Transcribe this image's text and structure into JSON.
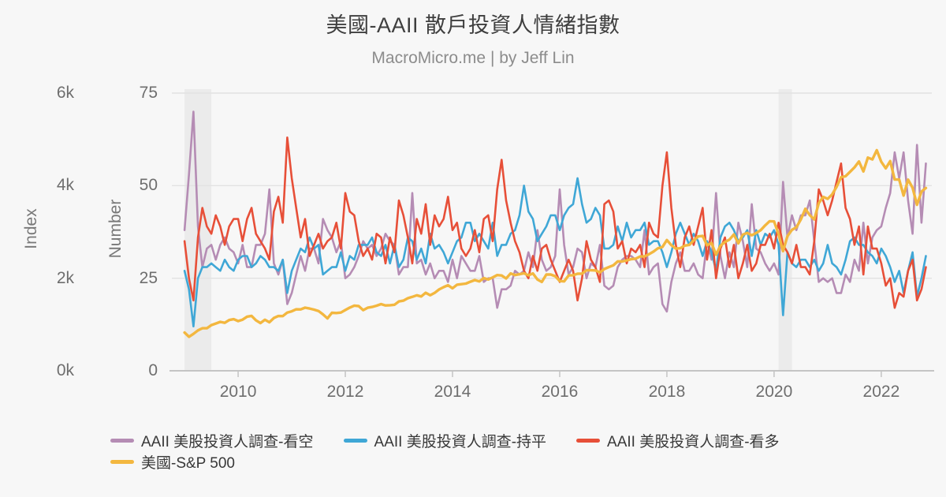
{
  "header": {
    "title": "美國-AAII 散戶投資人情緒指數",
    "subtitle": "MacroMicro.me | by Jeff Lin"
  },
  "colors": {
    "background": "#f7f7f7",
    "recession_band": "#ebebeb",
    "gridline": "#e2e2e2",
    "axis_line": "#c4c4c4",
    "title_text": "#3f3f3f",
    "subtitle_text": "#8c8c8c",
    "tick_text": "#6e6e6e",
    "axis_title_text": "#787878",
    "legend_text": "#383838"
  },
  "chart_data": {
    "type": "line",
    "title": "美國-AAII 散戶投資人情緒指數",
    "subtitle": "MacroMicro.me | by Jeff Lin",
    "legend_position": "bottom",
    "grid": "horizontal",
    "x_axis": {
      "start_month": "2009-01",
      "end_month": "2022-11",
      "step": "monthly",
      "points_per_series": 167,
      "tick_labels": [
        "2010",
        "2012",
        "2014",
        "2016",
        "2018",
        "2020",
        "2022"
      ]
    },
    "axes": {
      "index": {
        "label": "Index",
        "range": [
          0,
          6000
        ],
        "tick_values": [
          0,
          2000,
          4000,
          6000
        ],
        "tick_labels": [
          "0k",
          "2k",
          "4k",
          "6k"
        ]
      },
      "number": {
        "label": "Number",
        "range": [
          0,
          75
        ],
        "tick_values": [
          0,
          25,
          50,
          75
        ],
        "tick_labels": [
          "0",
          "25",
          "50",
          "75"
        ]
      }
    },
    "recession_bands": [
      {
        "start": "2009-01",
        "end": "2009-06"
      },
      {
        "start": "2020-02",
        "end": "2020-04"
      }
    ],
    "series": [
      {
        "id": "bear",
        "name": "AAII 美股投資人調查-看空",
        "axis": "number",
        "color": "#b58cb4",
        "line_width": 2.6,
        "values": [
          38,
          53,
          70,
          39,
          28,
          33,
          34,
          30,
          34,
          36,
          33,
          32,
          29,
          34,
          28,
          28,
          34,
          34,
          37,
          49,
          29,
          26,
          30,
          18,
          21,
          26,
          31,
          27,
          33,
          33,
          29,
          41,
          38,
          36,
          32,
          35,
          25,
          26,
          28,
          31,
          35,
          33,
          34,
          31,
          33,
          37,
          35,
          34,
          26,
          28,
          28,
          48,
          29,
          30,
          26,
          29,
          25,
          27,
          27,
          24,
          30,
          25,
          31,
          29,
          27,
          27,
          31,
          24,
          25,
          25,
          17,
          22,
          22,
          23,
          27,
          26,
          27,
          32,
          28,
          38,
          30,
          27,
          28,
          31,
          49,
          34,
          26,
          28,
          33,
          32,
          25,
          29,
          28,
          34,
          23,
          22,
          23,
          28,
          30,
          31,
          31,
          30,
          28,
          38,
          26,
          28,
          29,
          18,
          16,
          24,
          29,
          32,
          27,
          27,
          29,
          26,
          25,
          35,
          30,
          48,
          31,
          25,
          32,
          28,
          40,
          35,
          28,
          45,
          33,
          32,
          29,
          27,
          29,
          26,
          51,
          36,
          42,
          38,
          42,
          42,
          46,
          35,
          24,
          25,
          24,
          25,
          21,
          21,
          26,
          24,
          30,
          27,
          40,
          29,
          36,
          38,
          39,
          44,
          48,
          59,
          52,
          59,
          46,
          37,
          61,
          40,
          56
        ]
      },
      {
        "id": "neutral",
        "name": "AAII 美股投資人調查-持平",
        "axis": "number",
        "color": "#3fa7d6",
        "line_width": 2.6,
        "values": [
          27,
          22,
          12,
          25,
          28,
          28,
          29,
          28,
          27,
          30,
          28,
          27,
          30,
          31,
          31,
          28,
          29,
          31,
          30,
          28,
          28,
          27,
          30,
          21,
          27,
          30,
          33,
          32,
          36,
          33,
          34,
          26,
          27,
          28,
          28,
          32,
          27,
          31,
          30,
          34,
          34,
          34,
          36,
          32,
          31,
          34,
          29,
          34,
          28,
          30,
          36,
          35,
          30,
          33,
          29,
          37,
          33,
          34,
          32,
          29,
          32,
          35,
          36,
          40,
          40,
          35,
          37,
          35,
          33,
          40,
          31,
          34,
          34,
          37,
          38,
          42,
          50,
          43,
          41,
          35,
          37,
          39,
          42,
          42,
          38,
          42,
          44,
          45,
          52,
          45,
          40,
          41,
          44,
          42,
          33,
          33,
          34,
          39,
          35,
          40,
          36,
          38,
          38,
          40,
          34,
          35,
          35,
          32,
          28,
          32,
          37,
          40,
          37,
          34,
          37,
          35,
          31,
          35,
          32,
          27,
          36,
          39,
          40,
          38,
          35,
          36,
          38,
          31,
          38,
          34,
          37,
          36,
          38,
          34,
          15,
          32,
          29,
          28,
          30,
          30,
          28,
          30,
          27,
          29,
          34,
          29,
          28,
          26,
          30,
          35,
          36,
          34,
          34,
          32,
          31,
          29,
          33,
          31,
          28,
          24,
          27,
          21,
          27,
          32,
          20,
          25,
          31
        ]
      },
      {
        "id": "bull",
        "name": "AAII 美股投資人調查-看多",
        "axis": "number",
        "color": "#e74f38",
        "line_width": 2.6,
        "values": [
          35,
          25,
          19,
          36,
          44,
          39,
          37,
          42,
          39,
          34,
          39,
          41,
          41,
          35,
          41,
          44,
          37,
          35,
          33,
          30,
          43,
          47,
          40,
          63,
          52,
          44,
          36,
          41,
          31,
          34,
          37,
          33,
          35,
          36,
          40,
          33,
          48,
          43,
          42,
          35,
          31,
          33,
          30,
          37,
          36,
          29,
          36,
          32,
          46,
          42,
          36,
          29,
          41,
          37,
          45,
          34,
          42,
          39,
          41,
          47,
          38,
          40,
          33,
          31,
          33,
          38,
          32,
          41,
          42,
          35,
          49,
          57,
          46,
          40,
          35,
          32,
          27,
          25,
          31,
          27,
          33,
          34,
          30,
          27,
          24,
          27,
          30,
          27,
          19,
          25,
          35,
          30,
          28,
          24,
          45,
          46,
          43,
          33,
          35,
          29,
          33,
          32,
          34,
          28,
          40,
          37,
          36,
          50,
          59,
          44,
          34,
          28,
          36,
          39,
          34,
          39,
          44,
          30,
          38,
          25,
          33,
          36,
          28,
          34,
          25,
          29,
          34,
          27,
          29,
          34,
          34,
          37,
          33,
          40,
          34,
          32,
          29,
          34,
          28,
          28,
          26,
          35,
          49,
          46,
          42,
          46,
          51,
          56,
          44,
          41,
          34,
          39,
          26,
          39,
          33,
          33,
          29,
          23,
          25,
          17,
          21,
          20,
          27,
          30,
          19,
          22,
          28
        ]
      },
      {
        "id": "sp500",
        "name": "美國-S&P 500",
        "axis": "index",
        "color": "#f3b73f",
        "line_width": 3.4,
        "values": [
          826,
          735,
          798,
          873,
          919,
          919,
          987,
          1021,
          1057,
          1036,
          1096,
          1115,
          1074,
          1104,
          1169,
          1187,
          1089,
          1031,
          1102,
          1049,
          1141,
          1183,
          1181,
          1258,
          1286,
          1327,
          1326,
          1364,
          1345,
          1321,
          1292,
          1219,
          1131,
          1253,
          1247,
          1258,
          1312,
          1366,
          1408,
          1398,
          1310,
          1362,
          1379,
          1407,
          1441,
          1412,
          1416,
          1426,
          1498,
          1515,
          1569,
          1598,
          1631,
          1606,
          1686,
          1633,
          1682,
          1757,
          1806,
          1848,
          1783,
          1859,
          1872,
          1884,
          1924,
          1960,
          1931,
          2003,
          1972,
          2018,
          2068,
          2059,
          1995,
          2104,
          2068,
          2086,
          2107,
          2063,
          2104,
          1972,
          1920,
          2079,
          2080,
          2044,
          1940,
          1932,
          2060,
          2065,
          2097,
          2099,
          2174,
          2171,
          2168,
          2126,
          2199,
          2239,
          2279,
          2364,
          2363,
          2384,
          2412,
          2423,
          2470,
          2472,
          2519,
          2575,
          2648,
          2674,
          2824,
          2714,
          2641,
          2648,
          2705,
          2718,
          2816,
          2902,
          2914,
          2712,
          2760,
          2507,
          2704,
          2784,
          2834,
          2946,
          2752,
          2942,
          2980,
          2926,
          2977,
          3038,
          3141,
          3231,
          3226,
          2954,
          2585,
          2912,
          3044,
          3100,
          3271,
          3500,
          3363,
          3270,
          3622,
          3756,
          3714,
          3811,
          3973,
          4181,
          4204,
          4298,
          4395,
          4523,
          4308,
          4605,
          4567,
          4766,
          4516,
          4374,
          4530,
          4132,
          4132,
          3785,
          4130,
          3955,
          3586,
          3872,
          3950
        ]
      }
    ]
  }
}
